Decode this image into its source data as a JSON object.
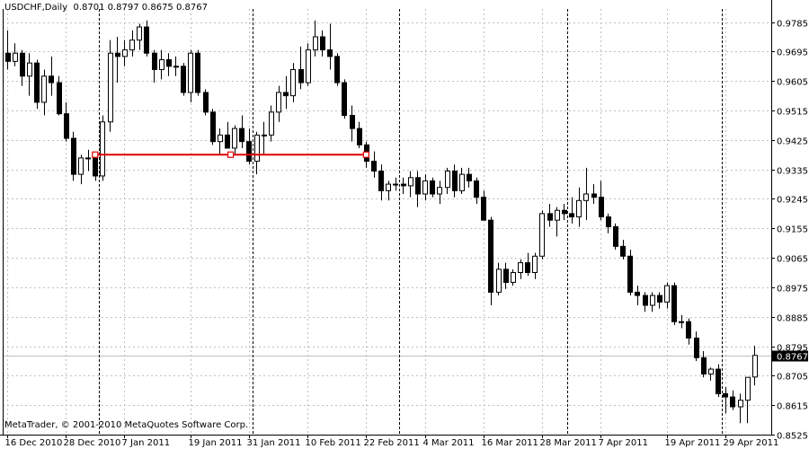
{
  "header": {
    "symbol": "USDCHF,Daily",
    "ohlc": "0.8701 0.8797 0.8675 0.8767"
  },
  "footer": {
    "copyright": "MetaTrader, © 2001-2010 MetaQuotes Software Corp."
  },
  "colors": {
    "background": "#ffffff",
    "bull_body": "#ffffff",
    "bear_body": "#000000",
    "candle_outline": "#000000",
    "grid": "#c0c0c0",
    "separator": "#000000",
    "trendline": "#e00000",
    "bid_line": "#c0c0c0"
  },
  "chart_data": {
    "type": "candlestick",
    "symbol": "USDCHF",
    "timeframe": "Daily",
    "last_price": "0.8767",
    "ylim": [
      0.8525,
      0.9825
    ],
    "y_ticks": [
      "0.9785",
      "0.9695",
      "0.9605",
      "0.9515",
      "0.9425",
      "0.9335",
      "0.9245",
      "0.9155",
      "0.9065",
      "0.8975",
      "0.8885",
      "0.8795",
      "0.8705",
      "0.8615",
      "0.8525"
    ],
    "x_ticks": [
      {
        "label": "16 Dec 2010",
        "bar": 0
      },
      {
        "label": "28 Dec 2010",
        "bar": 8
      },
      {
        "label": "7 Jan 2011",
        "bar": 16
      },
      {
        "label": "19 Jan 2011",
        "bar": 25
      },
      {
        "label": "31 Jan 2011",
        "bar": 33
      },
      {
        "label": "10 Feb 2011",
        "bar": 41
      },
      {
        "label": "22 Feb 2011",
        "bar": 49
      },
      {
        "label": "4 Mar 2011",
        "bar": 57
      },
      {
        "label": "16 Mar 2011",
        "bar": 65
      },
      {
        "label": "28 Mar 2011",
        "bar": 73
      },
      {
        "label": "7 Apr 2011",
        "bar": 81
      },
      {
        "label": "19 Apr 2011",
        "bar": 90
      },
      {
        "label": "29 Apr 2011",
        "bar": 98
      }
    ],
    "period_separators": [
      12,
      33,
      53,
      76,
      97
    ],
    "trendline": {
      "bars": [
        12,
        30.5,
        49
      ],
      "price": 0.938
    },
    "candles": [
      [
        0.969,
        0.976,
        0.964,
        0.9665
      ],
      [
        0.9665,
        0.972,
        0.965,
        0.969
      ],
      [
        0.969,
        0.97,
        0.959,
        0.962
      ],
      [
        0.962,
        0.969,
        0.956,
        0.966
      ],
      [
        0.966,
        0.967,
        0.952,
        0.954
      ],
      [
        0.954,
        0.964,
        0.95,
        0.962
      ],
      [
        0.962,
        0.968,
        0.956,
        0.96
      ],
      [
        0.96,
        0.962,
        0.95,
        0.9505
      ],
      [
        0.9505,
        0.954,
        0.942,
        0.943
      ],
      [
        0.943,
        0.945,
        0.93,
        0.932
      ],
      [
        0.932,
        0.938,
        0.929,
        0.937
      ],
      [
        0.937,
        0.9395,
        0.933,
        0.937
      ],
      [
        0.937,
        0.938,
        0.93,
        0.9315
      ],
      [
        0.9315,
        0.95,
        0.93,
        0.948
      ],
      [
        0.948,
        0.973,
        0.945,
        0.969
      ],
      [
        0.969,
        0.974,
        0.96,
        0.968
      ],
      [
        0.968,
        0.973,
        0.965,
        0.97
      ],
      [
        0.97,
        0.976,
        0.968,
        0.973
      ],
      [
        0.973,
        0.978,
        0.97,
        0.977
      ],
      [
        0.977,
        0.979,
        0.968,
        0.969
      ],
      [
        0.969,
        0.97,
        0.96,
        0.964
      ],
      [
        0.964,
        0.97,
        0.961,
        0.967
      ],
      [
        0.967,
        0.969,
        0.962,
        0.965
      ],
      [
        0.965,
        0.968,
        0.962,
        0.965
      ],
      [
        0.965,
        0.966,
        0.956,
        0.957
      ],
      [
        0.957,
        0.97,
        0.954,
        0.969
      ],
      [
        0.969,
        0.97,
        0.956,
        0.957
      ],
      [
        0.957,
        0.958,
        0.95,
        0.951
      ],
      [
        0.951,
        0.952,
        0.941,
        0.942
      ],
      [
        0.942,
        0.946,
        0.938,
        0.944
      ],
      [
        0.944,
        0.948,
        0.94,
        0.94
      ],
      [
        0.94,
        0.947,
        0.938,
        0.946
      ],
      [
        0.946,
        0.95,
        0.94,
        0.942
      ],
      [
        0.942,
        0.946,
        0.935,
        0.936
      ],
      [
        0.936,
        0.945,
        0.932,
        0.944
      ],
      [
        0.944,
        0.948,
        0.938,
        0.944
      ],
      [
        0.944,
        0.953,
        0.942,
        0.951
      ],
      [
        0.951,
        0.959,
        0.948,
        0.957
      ],
      [
        0.957,
        0.962,
        0.952,
        0.956
      ],
      [
        0.956,
        0.966,
        0.954,
        0.964
      ],
      [
        0.964,
        0.971,
        0.958,
        0.96
      ],
      [
        0.96,
        0.972,
        0.959,
        0.97
      ],
      [
        0.97,
        0.979,
        0.968,
        0.974
      ],
      [
        0.974,
        0.976,
        0.968,
        0.97
      ],
      [
        0.97,
        0.978,
        0.964,
        0.968
      ],
      [
        0.968,
        0.969,
        0.959,
        0.96
      ],
      [
        0.96,
        0.961,
        0.949,
        0.95
      ],
      [
        0.95,
        0.953,
        0.942,
        0.946
      ],
      [
        0.946,
        0.948,
        0.94,
        0.941
      ],
      [
        0.941,
        0.942,
        0.934,
        0.936
      ],
      [
        0.936,
        0.939,
        0.931,
        0.933
      ],
      [
        0.933,
        0.935,
        0.924,
        0.927
      ],
      [
        0.927,
        0.93,
        0.924,
        0.929
      ],
      [
        0.929,
        0.931,
        0.927,
        0.929
      ],
      [
        0.929,
        0.931,
        0.926,
        0.9285
      ],
      [
        0.9285,
        0.933,
        0.925,
        0.931
      ],
      [
        0.931,
        0.933,
        0.922,
        0.926
      ],
      [
        0.926,
        0.932,
        0.924,
        0.93
      ],
      [
        0.93,
        0.931,
        0.925,
        0.926
      ],
      [
        0.926,
        0.93,
        0.923,
        0.928
      ],
      [
        0.928,
        0.934,
        0.926,
        0.933
      ],
      [
        0.933,
        0.935,
        0.925,
        0.927
      ],
      [
        0.927,
        0.934,
        0.926,
        0.932
      ],
      [
        0.932,
        0.934,
        0.928,
        0.93
      ],
      [
        0.93,
        0.931,
        0.923,
        0.925
      ],
      [
        0.925,
        0.927,
        0.918,
        0.918
      ],
      [
        0.918,
        0.919,
        0.892,
        0.896
      ],
      [
        0.896,
        0.905,
        0.895,
        0.903
      ],
      [
        0.903,
        0.905,
        0.897,
        0.899
      ],
      [
        0.899,
        0.903,
        0.898,
        0.902
      ],
      [
        0.902,
        0.906,
        0.9,
        0.905
      ],
      [
        0.905,
        0.908,
        0.901,
        0.902
      ],
      [
        0.902,
        0.908,
        0.9,
        0.907
      ],
      [
        0.907,
        0.921,
        0.906,
        0.92
      ],
      [
        0.92,
        0.923,
        0.916,
        0.918
      ],
      [
        0.918,
        0.922,
        0.913,
        0.921
      ],
      [
        0.921,
        0.923,
        0.918,
        0.92
      ],
      [
        0.92,
        0.925,
        0.917,
        0.919
      ],
      [
        0.919,
        0.928,
        0.916,
        0.924
      ],
      [
        0.924,
        0.934,
        0.918,
        0.926
      ],
      [
        0.926,
        0.929,
        0.923,
        0.925
      ],
      [
        0.925,
        0.93,
        0.918,
        0.919
      ],
      [
        0.919,
        0.92,
        0.914,
        0.916
      ],
      [
        0.916,
        0.917,
        0.909,
        0.91
      ],
      [
        0.91,
        0.912,
        0.906,
        0.907
      ],
      [
        0.907,
        0.909,
        0.895,
        0.896
      ],
      [
        0.896,
        0.898,
        0.892,
        0.895
      ],
      [
        0.895,
        0.896,
        0.89,
        0.892
      ],
      [
        0.892,
        0.896,
        0.89,
        0.895
      ],
      [
        0.895,
        0.896,
        0.891,
        0.893
      ],
      [
        0.893,
        0.899,
        0.891,
        0.898
      ],
      [
        0.898,
        0.899,
        0.886,
        0.887
      ],
      [
        0.887,
        0.889,
        0.885,
        0.887
      ],
      [
        0.887,
        0.888,
        0.88,
        0.882
      ],
      [
        0.882,
        0.884,
        0.875,
        0.876
      ],
      [
        0.876,
        0.878,
        0.87,
        0.871
      ],
      [
        0.871,
        0.873,
        0.869,
        0.8725
      ],
      [
        0.8725,
        0.874,
        0.864,
        0.865
      ],
      [
        0.865,
        0.867,
        0.859,
        0.864
      ],
      [
        0.864,
        0.866,
        0.86,
        0.861
      ],
      [
        0.861,
        0.865,
        0.856,
        0.863
      ],
      [
        0.863,
        0.87,
        0.856,
        0.87
      ],
      [
        0.8701,
        0.8797,
        0.8675,
        0.8767
      ]
    ]
  }
}
